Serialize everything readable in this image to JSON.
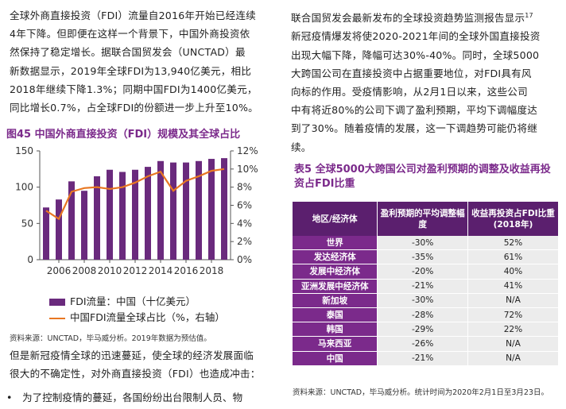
{
  "left": {
    "para1": [
      "全球外商直接投资（FDI）流量自2016年开始已经连续",
      "4年下降。但即便在这样一个背景下，中国外商投资依",
      "然保持了稳定增长。据联合国贸发会（UNCTAD）最",
      "新数据显示，2019年全球FDI为13,940亿美元，相比",
      "2018年继续下降1.3%；同期中国FDI为1400亿美元，",
      "同比增长0.7%，占全球FDI的份额进一步上升至10%。"
    ],
    "figure_title": "图45 中国外商直接投资（FDI）规模及其全球占比",
    "legend_bar": "FDI流量：中国（十亿美元）",
    "legend_line": "中国FDI流量全球占比（%，右轴）",
    "source": "资料来源：UNCTAD，毕马威分析。2019年数据为预估值。",
    "para2": [
      "但是新冠疫情全球的迅速蔓延，使全球的经济发展面临",
      "很大的不确定性，对外商直接投资（FDI）也造成冲击："
    ],
    "bullet_mark": "•",
    "bullet_text": "为了控制疫情的蔓延，各国纷纷出台限制人员、物"
  },
  "right": {
    "para": [
      "联合国贸发会最新发布的全球投资趋势监测报告显示",
      "新冠疫情爆发将使2020-2021年间的全球外国直接投资",
      "出现大幅下降，降幅可达30%-40%。同时，全球5000",
      "大跨国公司在直接投资中占据重要地位，对FDI具有风",
      "向标的作用。受疫情影响，从2月1日以来，这些公司",
      "中有将近80%的公司下调了盈利预期，平均下调幅度达",
      "到了30%。随着疫情的发展，这一下调趋势可能仍将继",
      "续。"
    ],
    "footnote_mark": "17",
    "table_title": "表5 全球5000大跨国公司对盈利预期的调整及收益再投资占FDI比重",
    "table_headers": [
      "地区/经济体",
      "盈利预期的平均调整幅度",
      "收益再投资占FDI比重(2018年)"
    ],
    "table_rows": [
      [
        "世界",
        "-30%",
        "52%"
      ],
      [
        "发达经济体",
        "-35%",
        "61%"
      ],
      [
        "发展中经济体",
        "-20%",
        "40%"
      ],
      [
        "亚洲发展中经济体",
        "-21%",
        "41%"
      ],
      [
        "新加坡",
        "-30%",
        "N/A"
      ],
      [
        "泰国",
        "-28%",
        "72%"
      ],
      [
        "韩国",
        "-29%",
        "22%"
      ],
      [
        "马来西亚",
        "-26%",
        "N/A"
      ],
      [
        "中国",
        "-21%",
        "N/A"
      ]
    ],
    "table_source": "资料来源：UNCTAD，毕马威分析。统计时间为2020年2月1日至3月23日。"
  },
  "colors": {
    "accent": "#7b2a8b",
    "bar": "#6a2a7d",
    "line": "#e87722",
    "header": "#5b1f6e"
  },
  "chart_data": {
    "type": "bar",
    "x": [
      2005,
      2006,
      2007,
      2008,
      2009,
      2010,
      2011,
      2012,
      2013,
      2014,
      2015,
      2016,
      2017,
      2018,
      2019
    ],
    "x_ticks": [
      "2006",
      "2008",
      "2010",
      "2012",
      "2014",
      "2016",
      "2018"
    ],
    "series": [
      {
        "name": "FDI流量：中国（十亿美元）",
        "axis": "left",
        "values": [
          72,
          83,
          108,
          95,
          115,
          124,
          121,
          124,
          128,
          136,
          134,
          134,
          136,
          139,
          140
        ]
      },
      {
        "name": "中国FDI流量全球占比（%，右轴）",
        "axis": "right",
        "type": "line",
        "values": [
          5.4,
          4.5,
          7.5,
          7.9,
          8.0,
          7.8,
          8.0,
          8.5,
          9.2,
          9.7,
          7.6,
          8.7,
          9.2,
          9.8,
          10.0
        ]
      }
    ],
    "ylim_left": [
      0,
      150
    ],
    "yticks_left": [
      "0",
      "50",
      "100",
      "150"
    ],
    "ylim_right": [
      0,
      12
    ],
    "yticks_right": [
      "0%",
      "2%",
      "4%",
      "6%",
      "8%",
      "10%",
      "12%"
    ],
    "grid": false
  }
}
